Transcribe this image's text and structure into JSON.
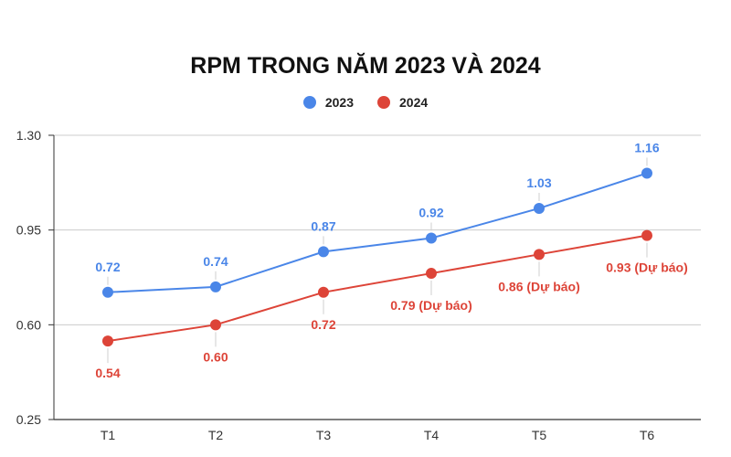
{
  "chart_data": {
    "type": "line",
    "title": "RPM TRONG NĂM 2023 VÀ 2024",
    "xlabel": "",
    "ylabel": "",
    "categories": [
      "T1",
      "T2",
      "T3",
      "T4",
      "T5",
      "T6"
    ],
    "ylim": [
      0.25,
      1.3
    ],
    "yticks": [
      "0.25",
      "0.60",
      "0.95",
      "1.30"
    ],
    "grid": true,
    "legend_position": "top",
    "series": [
      {
        "name": "2023",
        "color": "#4a86e8",
        "values": [
          0.72,
          0.74,
          0.87,
          0.92,
          1.03,
          1.16
        ],
        "labels": [
          "0.72",
          "0.74",
          "0.87",
          "0.92",
          "1.03",
          "1.16"
        ]
      },
      {
        "name": "2024",
        "color": "#dd4438",
        "values": [
          0.54,
          0.6,
          0.72,
          0.79,
          0.86,
          0.93
        ],
        "labels": [
          "0.54",
          "0.60",
          "0.72",
          "0.79 (Dự báo)",
          "0.86 (Dự báo)",
          "0.93 (Dự báo)"
        ]
      }
    ]
  }
}
